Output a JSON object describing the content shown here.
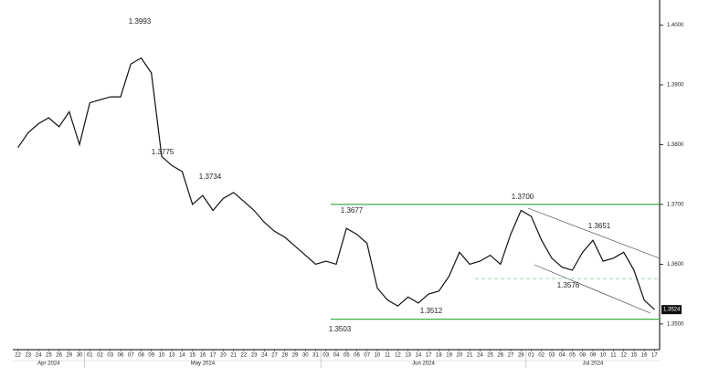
{
  "chart_data": {
    "type": "line",
    "color": "#111111",
    "categories": [
      "22",
      "23",
      "24",
      "25",
      "26",
      "29",
      "30",
      "01",
      "02",
      "03",
      "06",
      "07",
      "08",
      "09",
      "10",
      "13",
      "14",
      "15",
      "16",
      "17",
      "20",
      "21",
      "22",
      "23",
      "24",
      "27",
      "28",
      "29",
      "30",
      "31",
      "03",
      "04",
      "05",
      "06",
      "07",
      "10",
      "11",
      "12",
      "13",
      "14",
      "17",
      "18",
      "19",
      "20",
      "21",
      "24",
      "25",
      "26",
      "27",
      "28",
      "01",
      "02",
      "03",
      "04",
      "05",
      "08",
      "09",
      "10",
      "11",
      "12",
      "15",
      "16",
      "17"
    ],
    "values": [
      1.3795,
      1.382,
      1.3835,
      1.3845,
      1.383,
      1.3855,
      1.38,
      1.387,
      1.3875,
      1.388,
      1.388,
      1.3935,
      1.3945,
      1.392,
      1.378,
      1.3765,
      1.3755,
      1.37,
      1.3715,
      1.369,
      1.371,
      1.372,
      1.3705,
      1.369,
      1.367,
      1.3655,
      1.3645,
      1.363,
      1.3615,
      1.36,
      1.3605,
      1.36,
      1.366,
      1.365,
      1.3635,
      1.356,
      1.354,
      1.353,
      1.3545,
      1.3535,
      1.355,
      1.3555,
      1.358,
      1.362,
      1.36,
      1.3605,
      1.3615,
      1.36,
      1.365,
      1.369,
      1.368,
      1.364,
      1.361,
      1.3595,
      1.359,
      1.362,
      1.364,
      1.3605,
      1.361,
      1.362,
      1.359,
      1.354,
      1.3524
    ],
    "month_labels": [
      "Apr 2024",
      "May 2024",
      "Jun 2024",
      "Jul 2024"
    ],
    "ylim": [
      1.3457,
      1.4042
    ],
    "yticks": [
      {
        "value": 1.35,
        "label": "1.3500"
      },
      {
        "value": 1.36,
        "label": "1.3600"
      },
      {
        "value": 1.37,
        "label": "1.3700"
      },
      {
        "value": 1.38,
        "label": "1.3800"
      },
      {
        "value": 1.39,
        "label": "1.3900"
      },
      {
        "value": 1.4,
        "label": "1.4000"
      }
    ],
    "hlines": [
      {
        "value": 1.37,
        "color": "#3cb043",
        "dashed": false
      },
      {
        "value": 1.3508,
        "color": "#3cb043",
        "dashed": false
      },
      {
        "value": 1.3576,
        "color": "#7fcf95",
        "dashed": true
      }
    ],
    "annotations": [
      {
        "label": "1.3993",
        "value": 1.3993
      },
      {
        "label": "1.3775",
        "value": 1.3775
      },
      {
        "label": "1.3734",
        "value": 1.3734
      },
      {
        "label": "1.3677",
        "value": 1.3677
      },
      {
        "label": "1.3503",
        "value": 1.3503
      },
      {
        "label": "1.3512",
        "value": 1.3512
      },
      {
        "label": "1.3700",
        "value": 1.37
      },
      {
        "label": "1.3651",
        "value": 1.3651
      },
      {
        "label": "1.3576",
        "value": 1.3576
      }
    ],
    "last_price": {
      "label": "1.3524",
      "value": 1.3524
    }
  }
}
